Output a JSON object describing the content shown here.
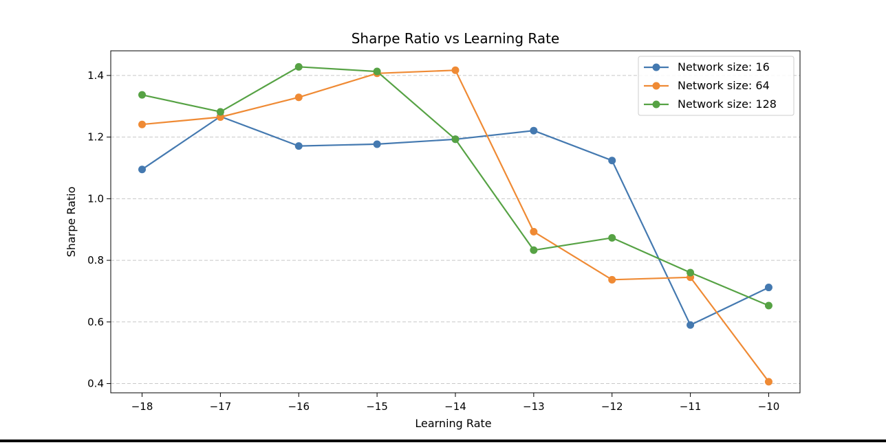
{
  "chart_data": {
    "type": "line",
    "title": "Sharpe Ratio vs Learning Rate",
    "xlabel": "Learning Rate",
    "ylabel": "Sharpe Ratio",
    "x": [
      -18,
      -17,
      -16,
      -15,
      -14,
      -13,
      -12,
      -11,
      -10
    ],
    "x_tick_labels": [
      "−18",
      "−17",
      "−16",
      "−15",
      "−14",
      "−13",
      "−12",
      "−11",
      "−10"
    ],
    "y_ticks": [
      0.4,
      0.6,
      0.8,
      1.0,
      1.2,
      1.4
    ],
    "y_tick_labels": [
      "0.4",
      "0.6",
      "0.8",
      "1.0",
      "1.2",
      "1.4"
    ],
    "xlim": [
      -18.4,
      -9.6
    ],
    "ylim": [
      0.37,
      1.48
    ],
    "grid": "y-dashed",
    "legend_position": "upper right",
    "series": [
      {
        "name": "Network size: 16",
        "color": "#4479b0",
        "values": [
          1.095,
          1.267,
          1.171,
          1.177,
          1.193,
          1.221,
          1.124,
          0.59,
          0.712
        ]
      },
      {
        "name": "Network size: 64",
        "color": "#ef8a34",
        "values": [
          1.241,
          1.265,
          1.329,
          1.407,
          1.417,
          0.893,
          0.737,
          0.745,
          0.406
        ]
      },
      {
        "name": "Network size: 128",
        "color": "#56a244",
        "values": [
          1.337,
          1.282,
          1.428,
          1.413,
          1.193,
          0.833,
          0.873,
          0.76,
          0.653
        ]
      }
    ]
  }
}
